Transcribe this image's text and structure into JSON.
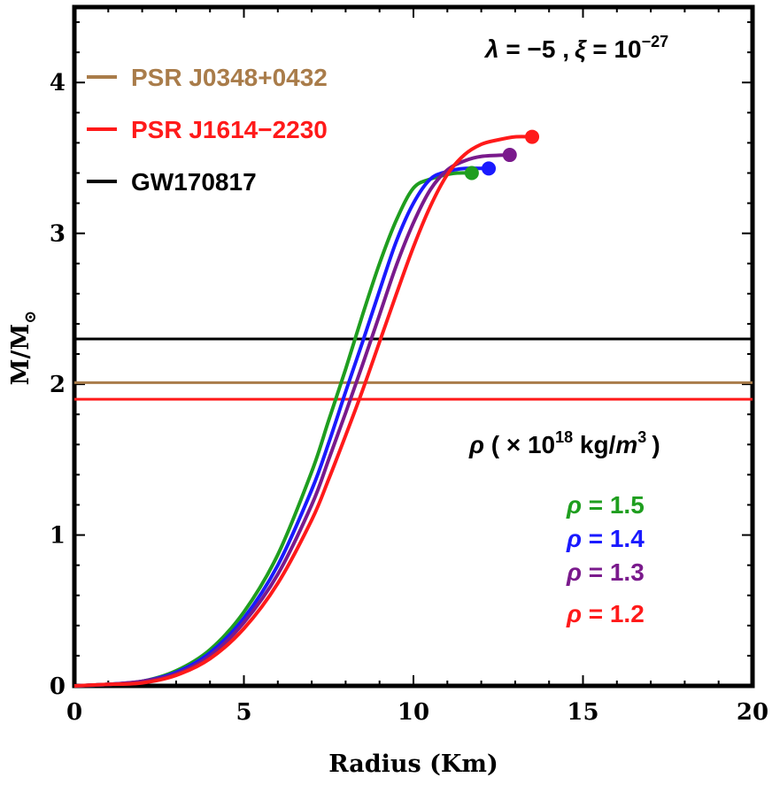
{
  "chart_data": {
    "type": "line",
    "xlabel": "Radius (Km)",
    "ylabel_main": "M/M",
    "ylabel_sub": "⊙",
    "xlim": [
      0,
      20
    ],
    "ylim": [
      0,
      4.5
    ],
    "x_ticks": [
      "0",
      "5",
      "10",
      "15",
      "20"
    ],
    "y_ticks": [
      "0",
      "1",
      "2",
      "3",
      "4"
    ],
    "grid": false,
    "parameters": {
      "lambda_label": "λ",
      "lambda_value": " = −5 ,",
      "xi_label": "ξ",
      "xi_value": " = 10",
      "xi_exponent": "−27"
    },
    "density_title": {
      "rho": "ρ",
      "prefix": " ( × 10",
      "exponent": "18",
      "unit": " kg/",
      "unit_m": "m",
      "unit_exp": "3",
      "suffix": ")"
    },
    "reference_lines": [
      {
        "name": "PSR J0348+0432",
        "y": 2.01,
        "color": "#a97c4a"
      },
      {
        "name": "PSR J1614−2230",
        "y": 1.9,
        "color": "#ff1a1a"
      },
      {
        "name": "GW170817",
        "y": 2.3,
        "color": "#000000"
      }
    ],
    "series": [
      {
        "name": "ρ = 1.5",
        "label_rho": "ρ",
        "label_value": " = 1.5",
        "color": "#1f9e1f",
        "x": [
          0.0,
          1.0,
          2.0,
          3.0,
          4.0,
          5.0,
          6.0,
          7.0,
          7.5,
          8.0,
          8.5,
          9.0,
          9.5,
          10.0,
          10.5,
          11.0,
          11.3,
          11.72
        ],
        "y": [
          0.0,
          0.01,
          0.03,
          0.1,
          0.24,
          0.49,
          0.87,
          1.42,
          1.76,
          2.1,
          2.46,
          2.8,
          3.09,
          3.3,
          3.36,
          3.39,
          3.4,
          3.4
        ],
        "endpoint": [
          11.72,
          3.4
        ]
      },
      {
        "name": "ρ = 1.4",
        "label_rho": "ρ",
        "label_value": " = 1.4",
        "color": "#1a1aff",
        "x": [
          0.0,
          1.0,
          2.0,
          3.0,
          4.0,
          5.0,
          6.0,
          7.0,
          7.5,
          8.0,
          8.5,
          9.0,
          9.5,
          10.0,
          10.5,
          11.0,
          11.5,
          12.22
        ],
        "y": [
          0.0,
          0.01,
          0.03,
          0.09,
          0.22,
          0.45,
          0.8,
          1.3,
          1.61,
          1.95,
          2.28,
          2.62,
          2.95,
          3.2,
          3.36,
          3.41,
          3.43,
          3.43
        ],
        "endpoint": [
          12.22,
          3.43
        ]
      },
      {
        "name": "ρ = 1.3",
        "label_rho": "ρ",
        "label_value": " = 1.3",
        "color": "#7a1a8c",
        "x": [
          0.0,
          1.0,
          2.0,
          3.0,
          4.0,
          5.0,
          6.0,
          7.0,
          7.5,
          8.0,
          8.5,
          9.0,
          9.5,
          10.0,
          10.5,
          11.0,
          11.5,
          12.0,
          12.84
        ],
        "y": [
          0.0,
          0.01,
          0.03,
          0.08,
          0.2,
          0.42,
          0.74,
          1.2,
          1.5,
          1.81,
          2.13,
          2.46,
          2.79,
          3.07,
          3.29,
          3.42,
          3.48,
          3.51,
          3.52
        ],
        "endpoint": [
          12.84,
          3.52
        ]
      },
      {
        "name": "ρ = 1.2",
        "label_rho": "ρ",
        "label_value": " = 1.2",
        "color": "#ff1a1a",
        "x": [
          0.0,
          1.0,
          2.0,
          3.0,
          4.0,
          5.0,
          6.0,
          7.0,
          7.5,
          8.0,
          8.5,
          9.0,
          9.5,
          10.0,
          10.5,
          11.0,
          11.5,
          12.0,
          12.5,
          13.0,
          13.5
        ],
        "y": [
          0.0,
          0.01,
          0.02,
          0.07,
          0.18,
          0.38,
          0.68,
          1.1,
          1.37,
          1.66,
          1.96,
          2.28,
          2.6,
          2.91,
          3.18,
          3.39,
          3.52,
          3.59,
          3.62,
          3.64,
          3.64
        ],
        "endpoint": [
          13.5,
          3.64
        ]
      }
    ]
  }
}
